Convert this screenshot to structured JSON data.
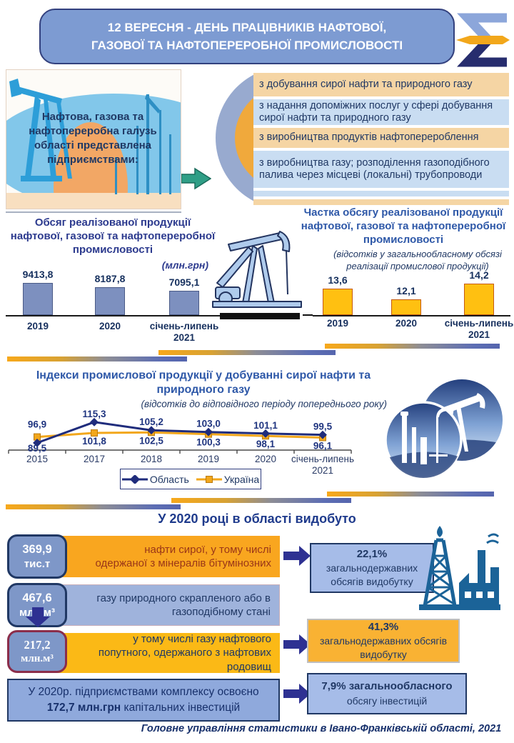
{
  "header": {
    "line1": "12 ВЕРЕСНЯ - ДЕНЬ ПРАЦІВНИКІВ НАФТОВОЇ,",
    "line2": "ГАЗОВОЇ ТА НАФТОПЕРЕРОБНОЇ ПРОМИСЛОВОСТІ"
  },
  "intro": {
    "caption": "Нафтова, газова та нафтопереробна галузь області представлена підприємствами:",
    "items": [
      {
        "text": "з добування сирої нафти та природного газу"
      },
      {
        "text": "з надання допоміжних послуг у сфері добування сирої нафти та природного газу"
      },
      {
        "text": "з виробництва продуктів нафтоперероблення"
      },
      {
        "text": "з виробництва газу; розподілення газоподібного палива через місцеві (локальні) трубопроводи"
      }
    ]
  },
  "chart_data": [
    {
      "type": "bar",
      "title": "Обсяг реалізованої продукції нафтової, газової та нафтопереробної промисловості",
      "unit_label": "(млн.грн)",
      "categories": [
        "2019",
        "2020",
        "січень-липень 2021"
      ],
      "values": [
        9413.8,
        8187.8,
        7095.1
      ],
      "value_labels": [
        "9413,8",
        "8187,8",
        "7095,1"
      ],
      "ylim": [
        0,
        10000
      ],
      "bar_color": "#7D90BF",
      "grid": false,
      "legend_position": "none"
    },
    {
      "type": "bar",
      "title": "Частка обсягу реалізованої продукції нафтової, газової та нафтопереробної промисловості",
      "subtitle": "(відсотків у загальнообласному обсязі реалізації промислової продукції)",
      "categories": [
        "2019",
        "2020",
        "січень-липень 2021"
      ],
      "values": [
        13.6,
        12.1,
        14.2
      ],
      "value_labels": [
        "13,6",
        "12,1",
        "14,2"
      ],
      "ylim": [
        10,
        15
      ],
      "bar_color": "#FFC011",
      "grid": false,
      "legend_position": "none"
    },
    {
      "type": "line",
      "title": "Індекси промислової продукції у добуванні сирої нафти та природного газу",
      "subtitle": "(відсотків до відповідного періоду попереднього року)",
      "categories": [
        "2015",
        "2017",
        "2018",
        "2019",
        "2020",
        "січень-липень 2021"
      ],
      "series": [
        {
          "name": "Область",
          "marker": "diamond",
          "color": "#1F2C7C",
          "values": [
            89.5,
            115.3,
            105.2,
            103.0,
            101.1,
            99.5
          ],
          "labels": [
            "89,5",
            "115,3",
            "105,2",
            "103,0",
            "101,1",
            "99,5"
          ]
        },
        {
          "name": "Україна",
          "marker": "square",
          "color": "#F2A71C",
          "values": [
            96.9,
            101.8,
            102.5,
            100.3,
            98.1,
            96.1
          ],
          "labels": [
            "96,9",
            "101,8",
            "102,5",
            "100,3",
            "98,1",
            "96,1"
          ]
        }
      ],
      "ylim": [
        85,
        120
      ],
      "grid": false,
      "legend_position": "bottom"
    }
  ],
  "section2020": {
    "title": "У 2020 році в області видобуто",
    "rows": [
      {
        "value": "369,9",
        "unit": "тис.т",
        "text": "нафти сирої, у тому числі одержаної з мінералів бітумінозних"
      },
      {
        "value": "467,6",
        "unit": "млн.м³",
        "text": "газу природного скрапленого або в газоподібному стані"
      },
      {
        "value": "217,2",
        "unit": "млн.м³",
        "text": "у тому числі газу нафтового попутного, одержаного з нафтових родовищ"
      }
    ],
    "result_boxes": [
      {
        "lead": "22,1%",
        "text": "загальнодержавних обсягів видобутку"
      },
      {
        "lead": "41,3%",
        "text": "загальнодержавних обсягів видобутку"
      },
      {
        "lead": "7,9% загальнообласного",
        "text": "обсягу інвестицій"
      }
    ],
    "investment": {
      "line1": "У 2020р. підприємствами комплексу  освоєно",
      "bold": "172,7 млн.грн",
      "rest": " капітальних інвестицій"
    }
  },
  "footer": "Головне управління статистики  в Івано-Франківській області, 2021",
  "colors": {
    "accent_orange": "#F9A61F",
    "accent_yellow": "#FFC011",
    "bar_blue": "#7D90BF",
    "badge_blue": "#7E97C8",
    "navy": "#203864",
    "light_row_orange": "#F5D5A4",
    "light_row_blue": "#C9DDF2",
    "box_periwinkle": "#A6BCE8"
  }
}
